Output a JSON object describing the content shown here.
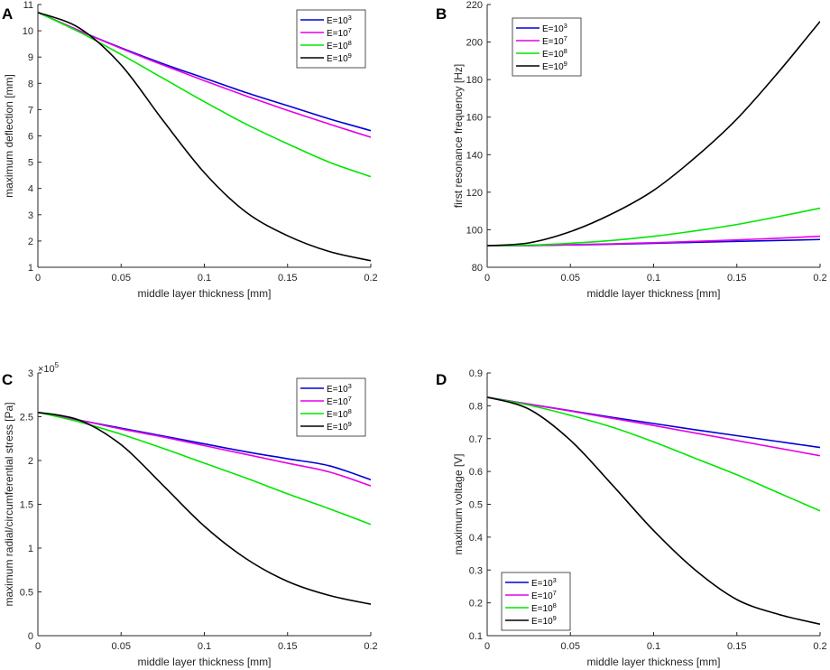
{
  "series_colors": {
    "E=10^3": "#0000d6",
    "E=10^7": "#e600e6",
    "E=10^8": "#00e600",
    "E=10^9": "#000000"
  },
  "chart_data": [
    {
      "panel": "A",
      "type": "line",
      "xlabel": "middle layer thickness [mm]",
      "ylabel": "maximum deflection [mm]",
      "xlim": [
        0,
        0.2
      ],
      "ylim": [
        1,
        11
      ],
      "xticks": [
        0,
        0.05,
        0.1,
        0.15,
        0.2
      ],
      "xtick_labels": [
        "0",
        "0.05",
        "0.1",
        "0.15",
        "0.2"
      ],
      "yticks": [
        1,
        2,
        3,
        4,
        5,
        6,
        7,
        8,
        9,
        10,
        11
      ],
      "ytick_labels": [
        "1",
        "2",
        "3",
        "4",
        "5",
        "6",
        "7",
        "8",
        "9",
        "10",
        "11"
      ],
      "exponent_label": null,
      "legend_position": "top-right",
      "x": [
        0,
        0.025,
        0.05,
        0.075,
        0.1,
        0.125,
        0.15,
        0.175,
        0.2
      ],
      "series": [
        {
          "name": "E=10",
          "exponent": "3",
          "color_key": "E=10^3",
          "values": [
            10.7,
            10.0,
            9.35,
            8.75,
            8.2,
            7.65,
            7.15,
            6.65,
            6.2
          ]
        },
        {
          "name": "E=10",
          "exponent": "7",
          "color_key": "E=10^7",
          "values": [
            10.7,
            10.0,
            9.33,
            8.7,
            8.1,
            7.52,
            6.97,
            6.45,
            5.95
          ]
        },
        {
          "name": "E=10",
          "exponent": "8",
          "color_key": "E=10^8",
          "values": [
            10.7,
            9.95,
            9.1,
            8.2,
            7.3,
            6.45,
            5.7,
            5.0,
            4.45
          ]
        },
        {
          "name": "E=10",
          "exponent": "9",
          "color_key": "E=10^9",
          "values": [
            10.7,
            10.1,
            8.7,
            6.6,
            4.6,
            3.1,
            2.2,
            1.6,
            1.25
          ]
        }
      ]
    },
    {
      "panel": "B",
      "type": "line",
      "xlabel": "middle layer thickness [mm]",
      "ylabel": "first resonance frequency [Hz]",
      "xlim": [
        0,
        0.2
      ],
      "ylim": [
        80,
        220
      ],
      "xticks": [
        0,
        0.05,
        0.1,
        0.15,
        0.2
      ],
      "xtick_labels": [
        "0",
        "0.05",
        "0.1",
        "0.15",
        "0.2"
      ],
      "yticks": [
        80,
        100,
        120,
        140,
        160,
        180,
        200,
        220
      ],
      "ytick_labels": [
        "80",
        "100",
        "120",
        "140",
        "160",
        "180",
        "200",
        "220"
      ],
      "exponent_label": null,
      "legend_position": "top-left",
      "x": [
        0,
        0.025,
        0.05,
        0.075,
        0.1,
        0.125,
        0.15,
        0.175,
        0.2
      ],
      "series": [
        {
          "name": "E=10",
          "exponent": "3",
          "color_key": "E=10^3",
          "values": [
            91.5,
            91.6,
            91.9,
            92.3,
            92.8,
            93.3,
            93.8,
            94.3,
            94.8
          ]
        },
        {
          "name": "E=10",
          "exponent": "7",
          "color_key": "E=10^7",
          "values": [
            91.5,
            91.6,
            92.0,
            92.5,
            93.1,
            93.8,
            94.6,
            95.5,
            96.5
          ]
        },
        {
          "name": "E=10",
          "exponent": "8",
          "color_key": "E=10^8",
          "values": [
            91.5,
            91.8,
            92.8,
            94.3,
            96.5,
            99.4,
            102.8,
            107.0,
            111.5
          ]
        },
        {
          "name": "E=10",
          "exponent": "9",
          "color_key": "E=10^9",
          "values": [
            91.5,
            93.0,
            99.0,
            108.5,
            121.0,
            138.5,
            159.0,
            184.0,
            211.0
          ]
        }
      ]
    },
    {
      "panel": "C",
      "type": "line",
      "xlabel": "middle layer thickness [mm]",
      "ylabel": "maximum radial/circumferential stress [Pa]",
      "xlim": [
        0,
        0.2
      ],
      "ylim": [
        0,
        3
      ],
      "xticks": [
        0,
        0.05,
        0.1,
        0.15,
        0.2
      ],
      "xtick_labels": [
        "0",
        "0.05",
        "0.1",
        "0.15",
        "0.2"
      ],
      "yticks": [
        0,
        0.5,
        1,
        1.5,
        2,
        2.5,
        3
      ],
      "ytick_labels": [
        "0",
        "0.5",
        "1",
        "1.5",
        "2",
        "2.5",
        "3"
      ],
      "exponent_label": {
        "base": "×10",
        "power": "5"
      },
      "legend_position": "top-right",
      "x": [
        0,
        0.025,
        0.05,
        0.075,
        0.1,
        0.125,
        0.15,
        0.175,
        0.2
      ],
      "series": [
        {
          "name": "E=10",
          "exponent": "3",
          "color_key": "E=10^3",
          "values": [
            2.55,
            2.46,
            2.37,
            2.28,
            2.19,
            2.1,
            2.02,
            1.94,
            1.78
          ]
        },
        {
          "name": "E=10",
          "exponent": "7",
          "color_key": "E=10^7",
          "values": [
            2.55,
            2.46,
            2.36,
            2.27,
            2.17,
            2.07,
            1.97,
            1.87,
            1.71
          ]
        },
        {
          "name": "E=10",
          "exponent": "8",
          "color_key": "E=10^8",
          "values": [
            2.55,
            2.44,
            2.3,
            2.14,
            1.97,
            1.8,
            1.62,
            1.45,
            1.27
          ]
        },
        {
          "name": "E=10",
          "exponent": "9",
          "color_key": "E=10^9",
          "values": [
            2.55,
            2.46,
            2.18,
            1.72,
            1.25,
            0.88,
            0.62,
            0.46,
            0.36
          ]
        }
      ]
    },
    {
      "panel": "D",
      "type": "line",
      "xlabel": "middle layer thickness [mm]",
      "ylabel": "maximum voltage [V]",
      "xlim": [
        0,
        0.2
      ],
      "ylim": [
        0.1,
        0.9
      ],
      "xticks": [
        0,
        0.05,
        0.1,
        0.15,
        0.2
      ],
      "xtick_labels": [
        "0",
        "0.05",
        "0.1",
        "0.15",
        "0.2"
      ],
      "yticks": [
        0.1,
        0.2,
        0.3,
        0.4,
        0.5,
        0.6,
        0.7,
        0.8,
        0.9
      ],
      "ytick_labels": [
        "0.1",
        "0.2",
        "0.3",
        "0.4",
        "0.5",
        "0.6",
        "0.7",
        "0.8",
        "0.9"
      ],
      "exponent_label": null,
      "legend_position": "bottom-left",
      "x": [
        0,
        0.025,
        0.05,
        0.075,
        0.1,
        0.125,
        0.15,
        0.175,
        0.2
      ],
      "series": [
        {
          "name": "E=10",
          "exponent": "3",
          "color_key": "E=10^3",
          "values": [
            0.826,
            0.805,
            0.785,
            0.765,
            0.746,
            0.727,
            0.709,
            0.691,
            0.673
          ]
        },
        {
          "name": "E=10",
          "exponent": "7",
          "color_key": "E=10^7",
          "values": [
            0.826,
            0.805,
            0.784,
            0.762,
            0.74,
            0.717,
            0.694,
            0.671,
            0.648
          ]
        },
        {
          "name": "E=10",
          "exponent": "8",
          "color_key": "E=10^8",
          "values": [
            0.826,
            0.802,
            0.771,
            0.735,
            0.69,
            0.64,
            0.59,
            0.535,
            0.48
          ]
        },
        {
          "name": "E=10",
          "exponent": "9",
          "color_key": "E=10^9",
          "values": [
            0.826,
            0.79,
            0.695,
            0.56,
            0.42,
            0.3,
            0.21,
            0.165,
            0.135
          ]
        }
      ]
    }
  ]
}
